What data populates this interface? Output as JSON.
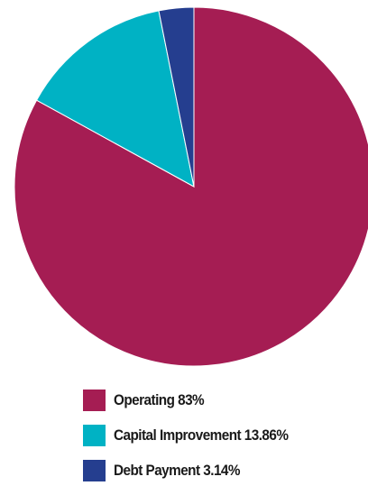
{
  "chart_data": {
    "type": "pie",
    "title": "",
    "slices": [
      {
        "label": "Operating 83%",
        "value": 83,
        "color": "#a51d53"
      },
      {
        "label": "Capital Improvement 13.86%",
        "value": 13.86,
        "color": "#00b2c4"
      },
      {
        "label": "Debt Payment 3.14%",
        "value": 3.14,
        "color": "#253e8f"
      }
    ],
    "start": "12 o'clock",
    "direction": "clockwise",
    "legend_position": "bottom"
  }
}
